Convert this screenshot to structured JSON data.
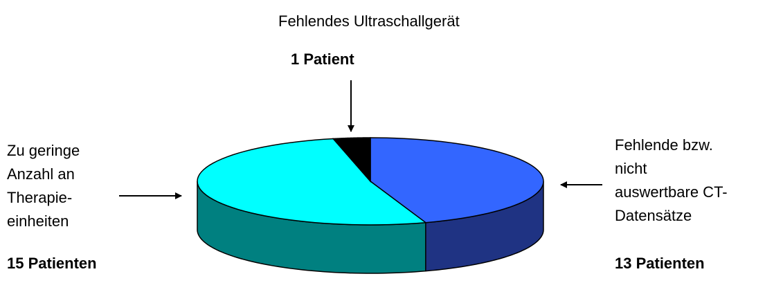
{
  "chart_data": {
    "type": "pie3d",
    "categories": [
      "Fehlende bzw.\nnicht\nauswertbare CT-\nDatensätze",
      "Zu geringe\nAnzahl an\nTherapie-\neinheiten",
      "Fehlendes Ultraschallgerät"
    ],
    "values": [
      13,
      15,
      1
    ],
    "value_labels": [
      "13 Patienten",
      "15 Patienten",
      "1 Patient"
    ],
    "colors": [
      "#3366ff",
      "#00ffff",
      "#000000"
    ],
    "side_colors": [
      "#1f3383",
      "#008080",
      "#000000"
    ]
  }
}
